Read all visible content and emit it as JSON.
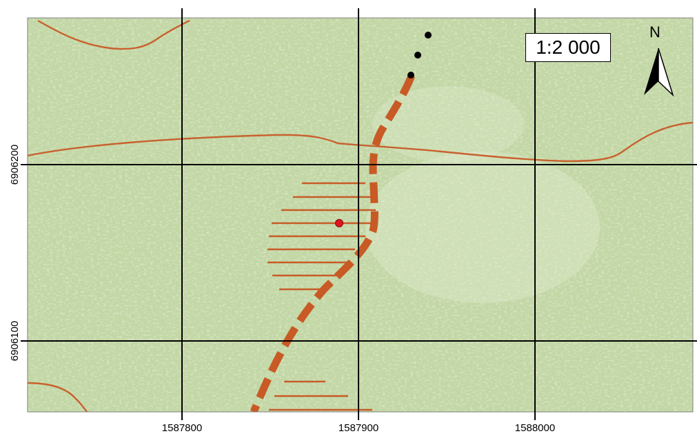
{
  "map": {
    "scale_label": "1:2 000",
    "north_label": "N",
    "x_ticks": [
      "1587800",
      "1587900",
      "1588000"
    ],
    "y_ticks": [
      "6906200",
      "6906100"
    ]
  },
  "colors": {
    "background": "#c2d6a4",
    "grid": "#000000",
    "contour": "#c8612e",
    "trail": "#c85a25",
    "point": "#e3131b"
  },
  "icons": {
    "north_arrow": "north-arrow-icon",
    "marker": "location-point-icon"
  }
}
